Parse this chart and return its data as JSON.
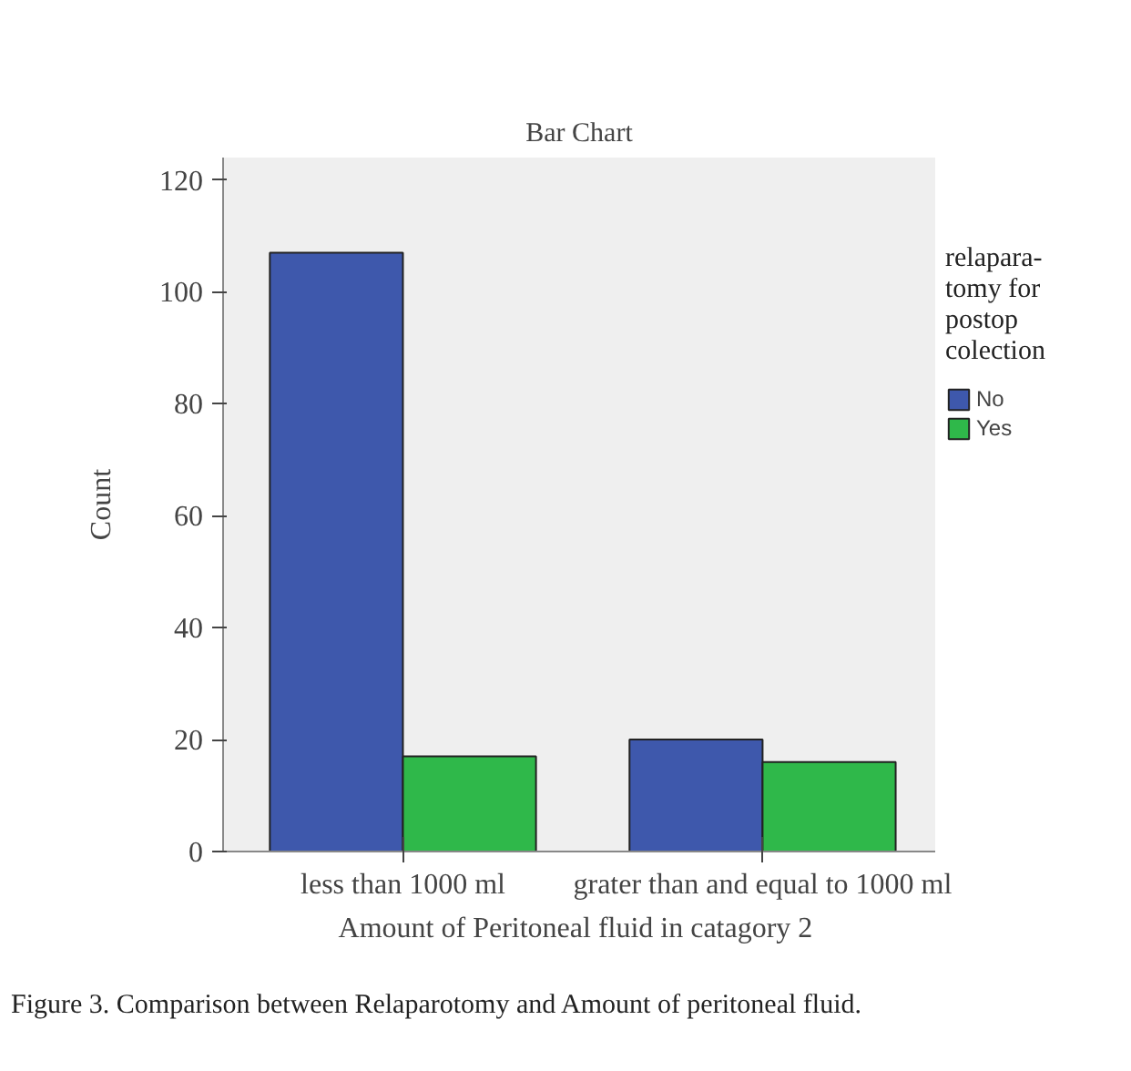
{
  "chart_data": {
    "type": "bar",
    "title": "Bar Chart",
    "xlabel": "Amount of Peritoneal fluid  in catagory 2",
    "ylabel": "Count",
    "categories": [
      "less than 1000 ml",
      "grater than and equal to 1000 ml"
    ],
    "legend_title": "relapara-\ntomy for\npostop\ncolection",
    "series": [
      {
        "name": "No",
        "color": "#3e58ac",
        "values": [
          107,
          20
        ]
      },
      {
        "name": "Yes",
        "color": "#2fb84a",
        "values": [
          17,
          16
        ]
      }
    ],
    "ylim": [
      0,
      124
    ],
    "yticks": [
      0,
      20,
      40,
      60,
      80,
      100,
      120
    ],
    "grid": false,
    "legend": "right",
    "annotations": [
      "Figure 3. Comparison between Relaparotomy and Amount of peritoneal fluid."
    ]
  }
}
